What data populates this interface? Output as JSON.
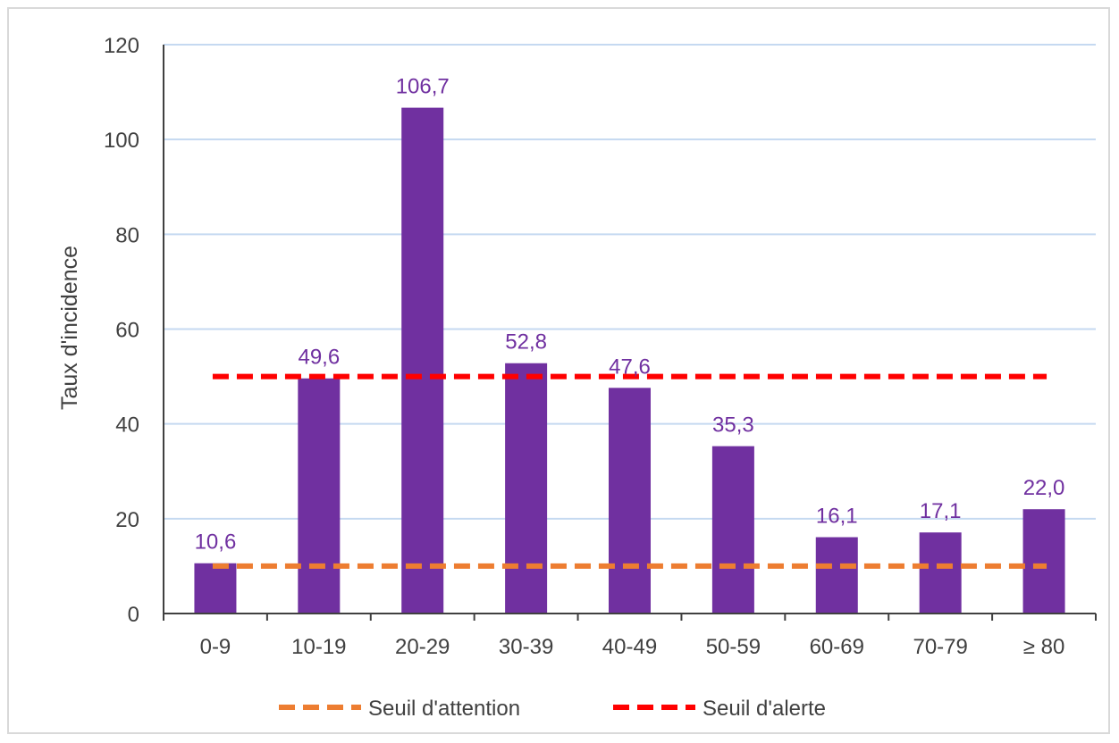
{
  "chart_data": {
    "type": "bar",
    "categories": [
      "0-9",
      "10-19",
      "20-29",
      "30-39",
      "40-49",
      "50-59",
      "60-69",
      "70-79",
      "≥ 80"
    ],
    "values": [
      10.6,
      49.6,
      106.7,
      52.8,
      47.6,
      35.3,
      16.1,
      17.1,
      22.0
    ],
    "data_labels": [
      "10,6",
      "49,6",
      "106,7",
      "52,8",
      "47,6",
      "35,3",
      "16,1",
      "17,1",
      "22,0"
    ],
    "bar_color": "#7030a0",
    "ylabel": "Taux d'incidence",
    "ylim": [
      0,
      120
    ],
    "yticks": [
      "0",
      "20",
      "40",
      "60",
      "80",
      "100",
      "120"
    ],
    "grid": true,
    "legend_position": "bottom",
    "reference_lines": [
      {
        "name": "Seuil d'attention",
        "value": 10,
        "color": "#ed7d31",
        "style": "dashed"
      },
      {
        "name": "Seuil d'alerte",
        "value": 50,
        "color": "#ff0000",
        "style": "dashed"
      }
    ]
  }
}
